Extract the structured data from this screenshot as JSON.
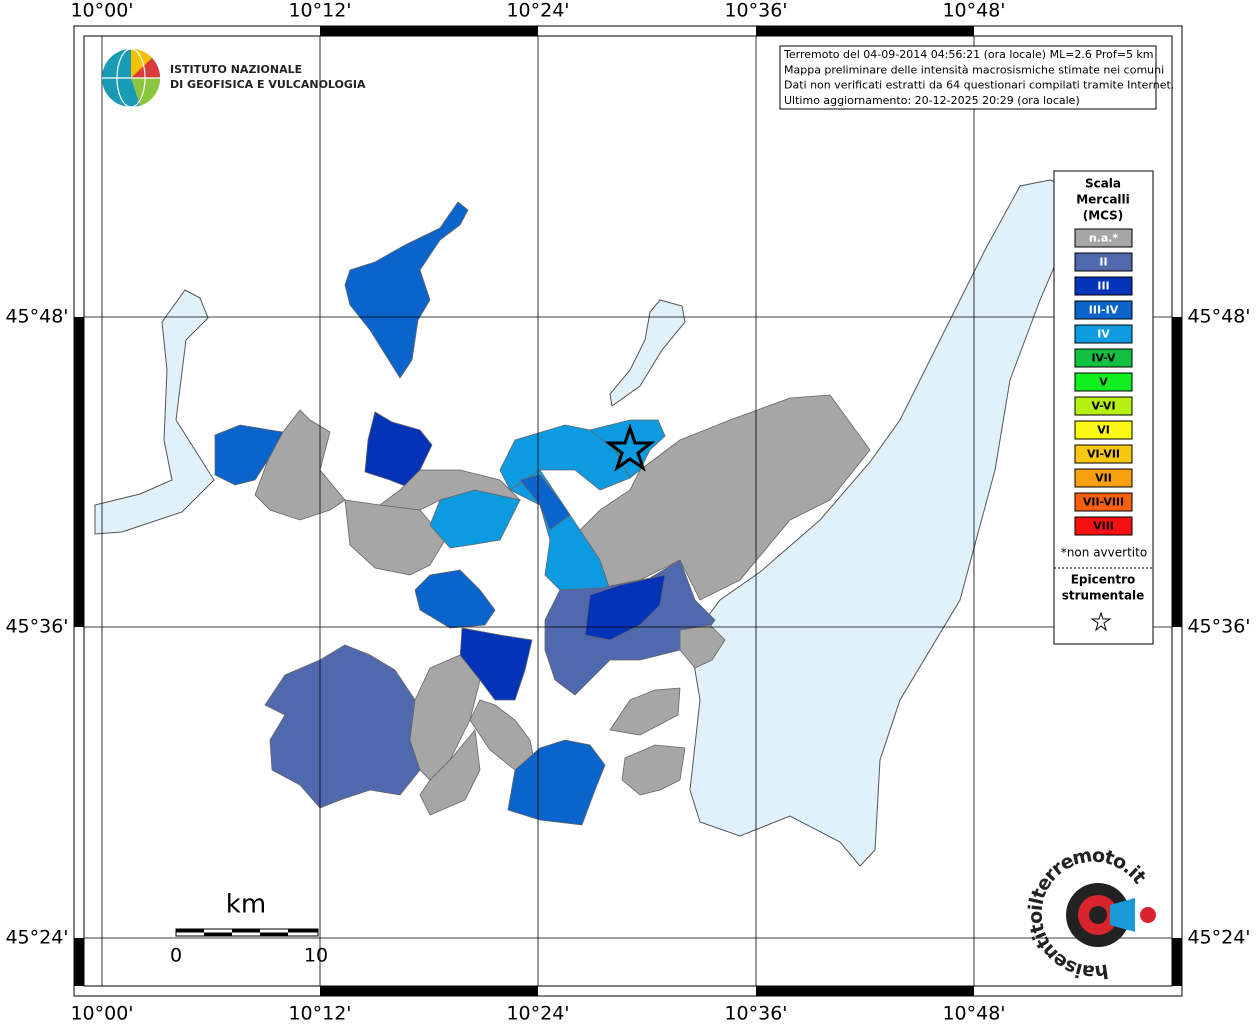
{
  "map": {
    "lon_labels": [
      "10°00'",
      "10°12'",
      "10°24'",
      "10°36'",
      "10°48'"
    ],
    "lat_labels": [
      "45°48'",
      "45°36'",
      "45°24'"
    ],
    "logo": {
      "line1": "ISTITUTO NAZIONALE",
      "line2": "DI GEOFISICA E VULCANOLOGIA"
    },
    "info": [
      "Terremoto del 04-09-2014 04:56:21 (ora locale) ML=2.6 Prof=5 km",
      "Mappa preliminare delle intensità macrosismiche stimate nei comuni",
      "Dati non verificati estratti da 64 questionari compilati tramite Internet.",
      "Ultimo aggiornamento: 20-12-2025 20:29 (ora locale)"
    ],
    "legend": {
      "title": [
        "Scala",
        "Mercalli",
        "(MCS)"
      ],
      "items": [
        {
          "label": "n.a.*",
          "color": "#a6a6a6",
          "text_color": "#ffffff"
        },
        {
          "label": "II",
          "color": "#5068ae",
          "text_color": "#ffffff"
        },
        {
          "label": "III",
          "color": "#0433b8",
          "text_color": "#ffffff"
        },
        {
          "label": "III-IV",
          "color": "#0a64cc",
          "text_color": "#ffffff"
        },
        {
          "label": "IV",
          "color": "#0c9be1",
          "text_color": "#ffffff"
        },
        {
          "label": "IV-V",
          "color": "#10c040",
          "text_color": "#000000"
        },
        {
          "label": "V",
          "color": "#10f020",
          "text_color": "#000000"
        },
        {
          "label": "V-VI",
          "color": "#b5f010",
          "text_color": "#000000"
        },
        {
          "label": "VI",
          "color": "#f8f810",
          "text_color": "#000000"
        },
        {
          "label": "VI-VII",
          "color": "#f8c810",
          "text_color": "#000000"
        },
        {
          "label": "VII",
          "color": "#f8a010",
          "text_color": "#000000"
        },
        {
          "label": "VII-VIII",
          "color": "#f86010",
          "text_color": "#000000"
        },
        {
          "label": "VIII",
          "color": "#f81010",
          "text_color": "#000000"
        }
      ],
      "note": "*non avvertito",
      "epicenter": [
        "Epicentro",
        "strumentale"
      ]
    },
    "scale_bar": {
      "unit": "km",
      "labels": [
        "0",
        "10"
      ]
    },
    "brand": "haisentitoilterremoto.it"
  }
}
